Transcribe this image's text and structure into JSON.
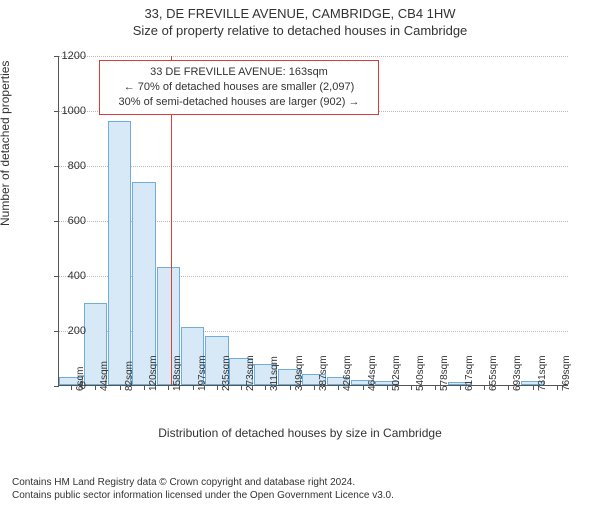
{
  "header": {
    "address": "33, DE FREVILLE AVENUE, CAMBRIDGE, CB4 1HW",
    "subtitle": "Size of property relative to detached houses in Cambridge"
  },
  "chart": {
    "type": "histogram",
    "ylabel": "Number of detached properties",
    "xlabel": "Distribution of detached houses by size in Cambridge",
    "ylim": [
      0,
      1200
    ],
    "ytick_step": 200,
    "bar_fill": "#d7e8f6",
    "bar_stroke": "#6faedb",
    "grid_color": "#bbbbbb",
    "axis_color": "#555555",
    "background_color": "#ffffff",
    "label_fontsize": 12,
    "tick_fontsize": 11,
    "categories": [
      "6sqm",
      "44sqm",
      "82sqm",
      "120sqm",
      "158sqm",
      "197sqm",
      "235sqm",
      "273sqm",
      "311sqm",
      "349sqm",
      "387sqm",
      "426sqm",
      "464sqm",
      "502sqm",
      "540sqm",
      "578sqm",
      "617sqm",
      "655sqm",
      "693sqm",
      "731sqm",
      "769sqm"
    ],
    "values": [
      30,
      300,
      960,
      740,
      430,
      210,
      180,
      100,
      75,
      60,
      40,
      30,
      20,
      15,
      0,
      0,
      12,
      0,
      0,
      15,
      0
    ],
    "bar_width_ratio": 0.96,
    "marker": {
      "position_sqm": 163,
      "color": "#d43f3a",
      "width": 1
    },
    "annotation": {
      "line1": "33 DE FREVILLE AVENUE: 163sqm",
      "line2": "← 70% of detached houses are smaller (2,097)",
      "line3": "30% of semi-detached houses are larger (902) →",
      "border_color": "#d43f3a",
      "background": "#ffffff",
      "fontsize": 11
    }
  },
  "footer": {
    "line1": "Contains HM Land Registry data © Crown copyright and database right 2024.",
    "line2": "Contains public sector information licensed under the Open Government Licence v3.0."
  }
}
